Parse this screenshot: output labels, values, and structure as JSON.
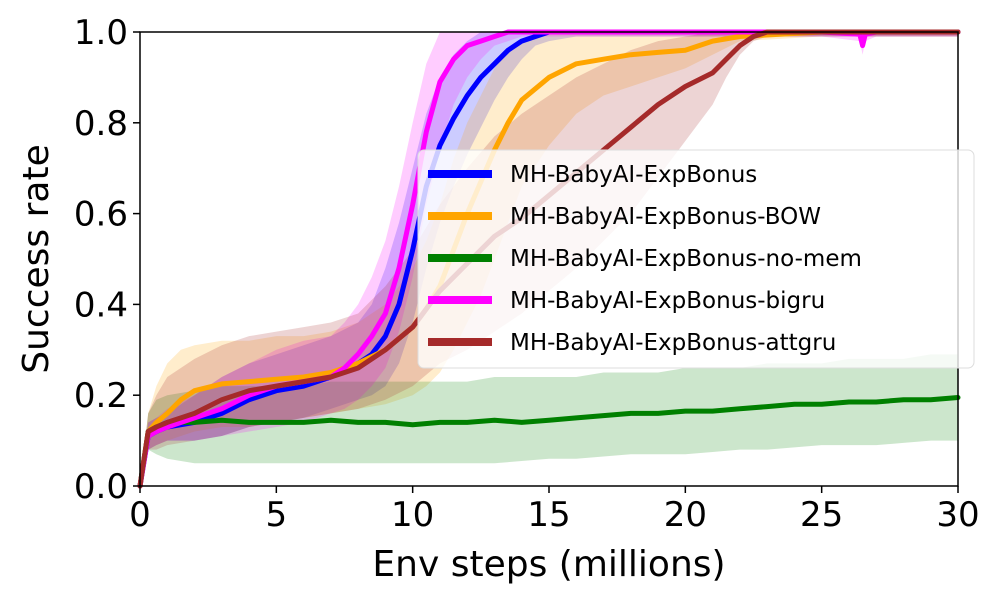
{
  "chart_data": {
    "type": "line",
    "xlabel": "Env steps (millions)",
    "ylabel": "Success rate",
    "xlim": [
      0,
      30
    ],
    "ylim": [
      0,
      1.0
    ],
    "xticks": [
      0,
      5,
      10,
      15,
      20,
      25,
      30
    ],
    "yticks": [
      0.0,
      0.2,
      0.4,
      0.6,
      0.8,
      1.0
    ],
    "xtick_labels": [
      "0",
      "5",
      "10",
      "15",
      "20",
      "25",
      "30"
    ],
    "ytick_labels": [
      "0.0",
      "0.2",
      "0.4",
      "0.6",
      "0.8",
      "1.0"
    ],
    "grid": false,
    "legend_position": "center-right",
    "series": [
      {
        "name": "MH-BabyAI-ExpBonus",
        "color": "#0000ff",
        "x": [
          0,
          0.3,
          0.6,
          1,
          2,
          3,
          4,
          5,
          6,
          7,
          8,
          8.5,
          9,
          9.5,
          10,
          10.5,
          11,
          11.5,
          12,
          12.5,
          13,
          13.5,
          14,
          14.5,
          15,
          16,
          17,
          18,
          20,
          22,
          25,
          27,
          30
        ],
        "y": [
          0.0,
          0.11,
          0.12,
          0.13,
          0.14,
          0.16,
          0.19,
          0.21,
          0.22,
          0.24,
          0.27,
          0.29,
          0.33,
          0.4,
          0.52,
          0.66,
          0.75,
          0.81,
          0.86,
          0.9,
          0.93,
          0.96,
          0.98,
          0.99,
          1.0,
          1.0,
          1.0,
          1.0,
          1.0,
          1.0,
          1.0,
          1.0,
          1.0
        ],
        "lower": [
          0.0,
          0.08,
          0.09,
          0.1,
          0.1,
          0.11,
          0.13,
          0.14,
          0.15,
          0.17,
          0.19,
          0.2,
          0.22,
          0.27,
          0.36,
          0.48,
          0.58,
          0.66,
          0.73,
          0.79,
          0.85,
          0.9,
          0.94,
          0.97,
          0.98,
          0.99,
          0.99,
          0.99,
          0.99,
          0.99,
          0.99,
          0.99,
          0.99
        ],
        "upper": [
          0.0,
          0.14,
          0.15,
          0.16,
          0.2,
          0.24,
          0.27,
          0.29,
          0.31,
          0.33,
          0.36,
          0.4,
          0.48,
          0.58,
          0.7,
          0.82,
          0.9,
          0.95,
          0.98,
          1.0,
          1.0,
          1.0,
          1.0,
          1.0,
          1.0,
          1.0,
          1.0,
          1.0,
          1.0,
          1.0,
          1.0,
          1.0,
          1.0
        ]
      },
      {
        "name": "MH-BabyAI-ExpBonus-BOW",
        "color": "#ffa500",
        "x": [
          0,
          0.3,
          0.6,
          1,
          1.5,
          2,
          3,
          4,
          5,
          6,
          7,
          8,
          9,
          10,
          10.5,
          11,
          11.5,
          12,
          12.5,
          13,
          13.5,
          14,
          15,
          16,
          17,
          18,
          19,
          20,
          21,
          22,
          25,
          27,
          30
        ],
        "y": [
          0.0,
          0.12,
          0.14,
          0.16,
          0.19,
          0.21,
          0.225,
          0.23,
          0.235,
          0.24,
          0.25,
          0.27,
          0.3,
          0.35,
          0.39,
          0.44,
          0.52,
          0.6,
          0.67,
          0.74,
          0.8,
          0.85,
          0.9,
          0.93,
          0.94,
          0.95,
          0.955,
          0.96,
          0.98,
          0.99,
          1.0,
          1.0,
          1.0
        ],
        "lower": [
          0.0,
          0.08,
          0.09,
          0.1,
          0.11,
          0.12,
          0.13,
          0.13,
          0.14,
          0.15,
          0.16,
          0.17,
          0.18,
          0.2,
          0.22,
          0.25,
          0.3,
          0.36,
          0.42,
          0.5,
          0.58,
          0.66,
          0.75,
          0.82,
          0.86,
          0.88,
          0.9,
          0.92,
          0.95,
          0.98,
          0.99,
          0.99,
          0.99
        ],
        "upper": [
          0.0,
          0.16,
          0.22,
          0.27,
          0.3,
          0.31,
          0.32,
          0.32,
          0.33,
          0.33,
          0.34,
          0.36,
          0.4,
          0.48,
          0.54,
          0.62,
          0.72,
          0.8,
          0.86,
          0.92,
          0.96,
          0.98,
          1.0,
          1.0,
          1.0,
          1.0,
          1.0,
          1.0,
          1.0,
          1.0,
          1.0,
          1.0,
          1.0
        ]
      },
      {
        "name": "MH-BabyAI-ExpBonus-no-mem",
        "color": "#008000",
        "x": [
          0,
          0.3,
          0.6,
          1,
          2,
          3,
          4,
          5,
          6,
          7,
          8,
          9,
          10,
          11,
          12,
          13,
          14,
          15,
          16,
          17,
          18,
          19,
          20,
          21,
          22,
          23,
          24,
          25,
          26,
          27,
          28,
          29,
          30
        ],
        "y": [
          0.0,
          0.12,
          0.13,
          0.14,
          0.14,
          0.145,
          0.14,
          0.14,
          0.14,
          0.145,
          0.14,
          0.14,
          0.135,
          0.14,
          0.14,
          0.145,
          0.14,
          0.145,
          0.15,
          0.155,
          0.16,
          0.16,
          0.165,
          0.165,
          0.17,
          0.175,
          0.18,
          0.18,
          0.185,
          0.185,
          0.19,
          0.19,
          0.195
        ],
        "lower": [
          0.0,
          0.08,
          0.07,
          0.06,
          0.05,
          0.05,
          0.05,
          0.05,
          0.05,
          0.05,
          0.05,
          0.05,
          0.05,
          0.05,
          0.05,
          0.05,
          0.055,
          0.06,
          0.06,
          0.065,
          0.07,
          0.07,
          0.07,
          0.075,
          0.08,
          0.08,
          0.085,
          0.09,
          0.09,
          0.09,
          0.095,
          0.1,
          0.1
        ],
        "upper": [
          0.0,
          0.16,
          0.19,
          0.2,
          0.21,
          0.22,
          0.22,
          0.22,
          0.22,
          0.23,
          0.23,
          0.23,
          0.23,
          0.23,
          0.23,
          0.24,
          0.24,
          0.24,
          0.24,
          0.25,
          0.25,
          0.25,
          0.26,
          0.26,
          0.26,
          0.27,
          0.27,
          0.27,
          0.28,
          0.28,
          0.28,
          0.29,
          0.29
        ]
      },
      {
        "name": "MH-BabyAI-ExpBonus-bigru",
        "color": "#ff00ff",
        "x": [
          0,
          0.3,
          0.6,
          1,
          2,
          3,
          4,
          5,
          6,
          7,
          7.5,
          8,
          8.5,
          9,
          9.5,
          10,
          10.5,
          11,
          11.5,
          12,
          12.5,
          13,
          13.5,
          14,
          15,
          17,
          20,
          25,
          26.4,
          26.5,
          26.6,
          27,
          30
        ],
        "y": [
          0.0,
          0.11,
          0.12,
          0.13,
          0.15,
          0.17,
          0.2,
          0.22,
          0.23,
          0.24,
          0.26,
          0.29,
          0.33,
          0.38,
          0.48,
          0.62,
          0.78,
          0.89,
          0.94,
          0.97,
          0.98,
          0.99,
          1.0,
          1.0,
          1.0,
          1.0,
          1.0,
          1.0,
          0.995,
          0.97,
          0.995,
          1.0,
          1.0
        ],
        "lower": [
          0.0,
          0.08,
          0.09,
          0.1,
          0.1,
          0.11,
          0.12,
          0.13,
          0.14,
          0.16,
          0.17,
          0.19,
          0.22,
          0.26,
          0.34,
          0.46,
          0.62,
          0.74,
          0.84,
          0.9,
          0.94,
          0.97,
          0.98,
          0.99,
          0.99,
          0.99,
          0.99,
          0.99,
          0.98,
          0.95,
          0.98,
          0.99,
          0.99
        ],
        "upper": [
          0.0,
          0.14,
          0.15,
          0.17,
          0.2,
          0.24,
          0.27,
          0.3,
          0.32,
          0.33,
          0.36,
          0.4,
          0.46,
          0.54,
          0.66,
          0.8,
          0.93,
          1.0,
          1.0,
          1.0,
          1.0,
          1.0,
          1.0,
          1.0,
          1.0,
          1.0,
          1.0,
          1.0,
          1.0,
          1.0,
          1.0,
          1.0,
          1.0
        ]
      },
      {
        "name": "MH-BabyAI-ExpBonus-attgru",
        "color": "#a52a2a",
        "x": [
          0,
          0.3,
          0.6,
          1,
          2,
          3,
          4,
          5,
          6,
          7,
          8,
          9,
          10,
          11,
          12,
          13,
          14,
          15,
          16,
          17,
          18,
          19,
          20,
          21,
          21.5,
          22,
          22.5,
          23,
          24,
          25,
          27,
          30
        ],
        "y": [
          0.0,
          0.12,
          0.13,
          0.14,
          0.16,
          0.19,
          0.21,
          0.22,
          0.23,
          0.24,
          0.26,
          0.3,
          0.35,
          0.43,
          0.49,
          0.55,
          0.59,
          0.64,
          0.69,
          0.74,
          0.79,
          0.84,
          0.88,
          0.91,
          0.94,
          0.97,
          0.99,
          1.0,
          1.0,
          1.0,
          1.0,
          1.0
        ],
        "lower": [
          0.0,
          0.08,
          0.08,
          0.09,
          0.1,
          0.11,
          0.13,
          0.14,
          0.15,
          0.16,
          0.17,
          0.19,
          0.22,
          0.27,
          0.3,
          0.34,
          0.38,
          0.43,
          0.48,
          0.54,
          0.6,
          0.68,
          0.76,
          0.84,
          0.9,
          0.95,
          0.98,
          0.99,
          0.99,
          0.99,
          0.99,
          0.99
        ],
        "upper": [
          0.0,
          0.16,
          0.2,
          0.24,
          0.28,
          0.31,
          0.33,
          0.34,
          0.35,
          0.36,
          0.38,
          0.44,
          0.52,
          0.62,
          0.7,
          0.77,
          0.82,
          0.86,
          0.9,
          0.93,
          0.96,
          0.98,
          0.99,
          1.0,
          1.0,
          1.0,
          1.0,
          1.0,
          1.0,
          1.0,
          1.0,
          1.0
        ]
      }
    ]
  }
}
